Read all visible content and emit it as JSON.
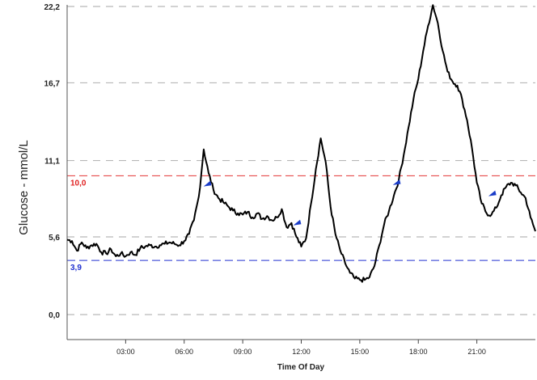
{
  "chart_data": {
    "type": "line",
    "ylabel": "Glucose - mmol/L",
    "xlabel": "Time Of Day",
    "ylim": [
      0,
      22.2
    ],
    "xlim": [
      0,
      24
    ],
    "y_ticks": [
      {
        "value": 0.0,
        "label": "0,0"
      },
      {
        "value": 5.6,
        "label": "5,6"
      },
      {
        "value": 11.1,
        "label": "11,1"
      },
      {
        "value": 16.7,
        "label": "16,7"
      },
      {
        "value": 22.2,
        "label": "22,2"
      }
    ],
    "x_ticks": [
      {
        "value": 3,
        "label": "03:00"
      },
      {
        "value": 6,
        "label": "06:00"
      },
      {
        "value": 9,
        "label": "09:00"
      },
      {
        "value": 12,
        "label": "12:00"
      },
      {
        "value": 15,
        "label": "15:00"
      },
      {
        "value": 18,
        "label": "18:00"
      },
      {
        "value": 21,
        "label": "21:00"
      }
    ],
    "grid": "horizontal-dashed",
    "thresholds": [
      {
        "value": 10.0,
        "label": "10,0",
        "color": "#e02020"
      },
      {
        "value": 3.9,
        "label": "3,9",
        "color": "#2030d0"
      }
    ],
    "series": [
      {
        "color": "#000000",
        "x": [
          0.0,
          0.25,
          0.5,
          0.75,
          1.0,
          1.25,
          1.5,
          1.75,
          2.0,
          2.25,
          2.5,
          2.75,
          3.0,
          3.25,
          3.5,
          3.75,
          4.0,
          4.25,
          4.5,
          4.75,
          5.0,
          5.25,
          5.5,
          5.75,
          6.0,
          6.25,
          6.5,
          6.75,
          7.0,
          7.25,
          7.5,
          7.75,
          8.0,
          8.25,
          8.5,
          8.75,
          9.0,
          9.25,
          9.5,
          9.75,
          10.0,
          10.25,
          10.5,
          10.75,
          11.0,
          11.25,
          11.5,
          11.75,
          12.0,
          12.25,
          12.5,
          12.75,
          13.0,
          13.25,
          13.5,
          13.75,
          14.0,
          14.25,
          14.5,
          14.75,
          15.0,
          15.25,
          15.5,
          15.75,
          16.0,
          16.25,
          16.5,
          16.75,
          17.0,
          17.25,
          17.5,
          17.75,
          18.0,
          18.25,
          18.5,
          18.75,
          19.0,
          19.25,
          19.5,
          19.75,
          20.0,
          20.25,
          20.5,
          20.75,
          21.0,
          21.25,
          21.5,
          21.75,
          22.0,
          22.25,
          22.5,
          22.75,
          23.0,
          23.25,
          23.5,
          23.75,
          24.0
        ],
        "y": [
          5.4,
          5.3,
          4.6,
          5.2,
          4.8,
          5.0,
          5.1,
          4.5,
          4.4,
          4.7,
          4.2,
          4.4,
          4.2,
          4.5,
          4.3,
          4.8,
          4.9,
          5.0,
          4.9,
          5.0,
          5.1,
          5.2,
          5.1,
          5.0,
          5.3,
          5.8,
          6.8,
          8.5,
          11.9,
          10.2,
          9.0,
          8.4,
          8.1,
          7.8,
          7.5,
          7.3,
          7.2,
          7.4,
          7.0,
          7.3,
          6.9,
          7.1,
          6.8,
          7.0,
          7.6,
          6.3,
          6.6,
          5.6,
          4.9,
          5.5,
          8.0,
          10.5,
          12.7,
          11.0,
          7.8,
          5.8,
          4.6,
          3.7,
          3.0,
          2.6,
          2.5,
          2.5,
          2.7,
          3.5,
          5.0,
          6.5,
          7.5,
          8.6,
          9.7,
          11.5,
          13.5,
          15.5,
          17.0,
          19.0,
          20.8,
          22.3,
          21.0,
          19.0,
          17.5,
          16.8,
          16.5,
          15.5,
          14.0,
          12.0,
          9.5,
          8.0,
          7.3,
          7.2,
          7.7,
          8.6,
          9.2,
          9.5,
          9.3,
          8.8,
          8.4,
          7.0,
          6.0
        ]
      }
    ],
    "event_markers": [
      {
        "x": 7.2,
        "y": 9.4,
        "color": "#1a3cc8"
      },
      {
        "x": 11.8,
        "y": 6.6,
        "color": "#1a3cc8"
      },
      {
        "x": 16.9,
        "y": 9.5,
        "color": "#1a3cc8"
      },
      {
        "x": 21.8,
        "y": 8.7,
        "color": "#1a3cc8"
      }
    ]
  }
}
